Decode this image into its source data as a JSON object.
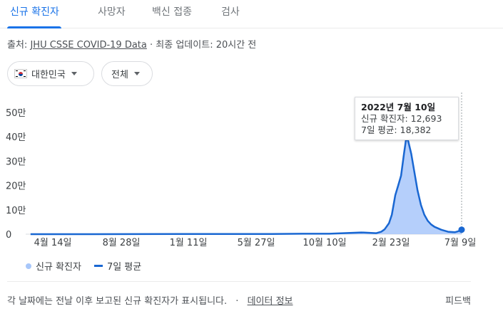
{
  "tabs": [
    {
      "label": "신규 확진자",
      "active": true
    },
    {
      "label": "사망자",
      "active": false
    },
    {
      "label": "백신 접종",
      "active": false
    },
    {
      "label": "검사",
      "active": false
    }
  ],
  "source": {
    "prefix": "출처:",
    "link": "JHU CSSE COVID-19 Data",
    "separator": "·",
    "updated": "최종 업데이트: 20시간 전"
  },
  "filters": {
    "country": "대한민국",
    "range": "전체"
  },
  "tooltip": {
    "date": "2022년 7월 10일",
    "new_cases": "신규 확진자: 12,693",
    "avg": "7일 평균: 18,382"
  },
  "legend": {
    "cases": "신규 확진자",
    "avg": "7일 평균"
  },
  "footer": {
    "note": "각 날짜에는 전날 이후 보고된 신규 확진자가 표시됩니다.",
    "separator": "·",
    "info_link": "데이터 정보",
    "feedback": "피드백"
  },
  "colors": {
    "accent": "#1a73e8",
    "bar": "#a8c7fa",
    "line": "#1967d2"
  },
  "chart_data": {
    "type": "area",
    "y_tick_labels": [
      "0",
      "10만",
      "20만",
      "30만",
      "40만",
      "50만"
    ],
    "y_tick_values": [
      0,
      100000,
      200000,
      300000,
      400000,
      500000
    ],
    "ylim": [
      0,
      500000
    ],
    "x_tick_labels": [
      "4월 14일",
      "8월 28일",
      "1월 11일",
      "5월 27일",
      "10월 10일",
      "2월 23일",
      "7월 9일"
    ],
    "series": [
      {
        "name": "7일 평균",
        "points": [
          [
            "2020-02-01",
            0
          ],
          [
            "2020-08-28",
            300
          ],
          [
            "2020-12-25",
            1000
          ],
          [
            "2021-06-01",
            500
          ],
          [
            "2021-08-15",
            1700
          ],
          [
            "2021-10-10",
            1700
          ],
          [
            "2021-12-15",
            7000
          ],
          [
            "2022-01-15",
            4000
          ],
          [
            "2022-01-25",
            10000
          ],
          [
            "2022-02-01",
            20000
          ],
          [
            "2022-02-10",
            45000
          ],
          [
            "2022-02-16",
            80000
          ],
          [
            "2022-02-23",
            160000
          ],
          [
            "2022-03-01",
            200000
          ],
          [
            "2022-03-07",
            240000
          ],
          [
            "2022-03-13",
            330000
          ],
          [
            "2022-03-18",
            400000
          ],
          [
            "2022-03-22",
            380000
          ],
          [
            "2022-03-28",
            330000
          ],
          [
            "2022-04-03",
            260000
          ],
          [
            "2022-04-10",
            180000
          ],
          [
            "2022-04-17",
            120000
          ],
          [
            "2022-04-24",
            80000
          ],
          [
            "2022-05-01",
            55000
          ],
          [
            "2022-05-08",
            40000
          ],
          [
            "2022-05-15",
            30000
          ],
          [
            "2022-05-29",
            18000
          ],
          [
            "2022-06-12",
            10000
          ],
          [
            "2022-06-26",
            8000
          ],
          [
            "2022-07-03",
            12000
          ],
          [
            "2022-07-10",
            18382
          ]
        ]
      }
    ]
  }
}
